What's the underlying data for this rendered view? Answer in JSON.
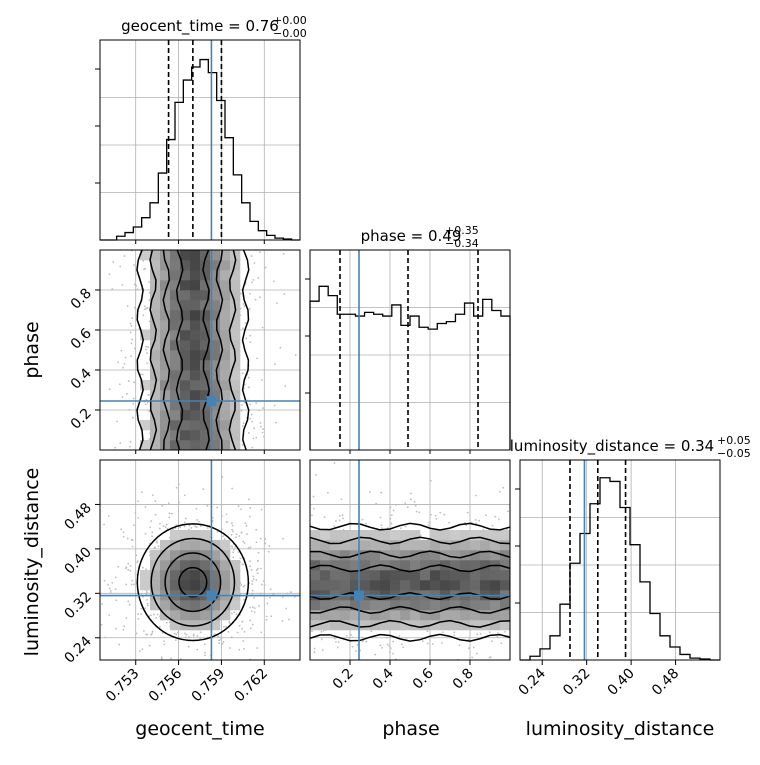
{
  "chart_data": {
    "type": "corner",
    "parameters": [
      {
        "name": "geocent_time",
        "median_label": "0.76",
        "plus": "+0.00",
        "minus": "−0.00",
        "title_prefix": "geocent_time = ",
        "range": [
          0.7505,
          0.7645
        ],
        "ticks": [
          {
            "v": 0.753,
            "label": "0.753"
          },
          {
            "v": 0.756,
            "label": "0.756"
          },
          {
            "v": 0.759,
            "label": "0.759"
          },
          {
            "v": 0.762,
            "label": "0.762"
          }
        ],
        "injected": 0.7583,
        "quantiles": [
          0.7553,
          0.757,
          0.759
        ],
        "histogram": [
          0,
          0,
          0.02,
          0.04,
          0.07,
          0.12,
          0.2,
          0.36,
          0.54,
          0.74,
          0.86,
          0.93,
          0.97,
          0.9,
          0.75,
          0.55,
          0.35,
          0.2,
          0.1,
          0.05,
          0.025,
          0.01,
          0.005,
          0
        ]
      },
      {
        "name": "phase",
        "median_label": "0.49",
        "plus": "+0.35",
        "minus": "−0.34",
        "title_prefix": "phase = ",
        "range": [
          0.0,
          1.0
        ],
        "ticks": [
          {
            "v": 0.2,
            "label": "0.2"
          },
          {
            "v": 0.4,
            "label": "0.4"
          },
          {
            "v": 0.6,
            "label": "0.6"
          },
          {
            "v": 0.8,
            "label": "0.8"
          }
        ],
        "injected": 0.245,
        "quantiles": [
          0.15,
          0.49,
          0.84
        ],
        "histogram": [
          0.8,
          0.88,
          0.83,
          0.73,
          0.73,
          0.72,
          0.74,
          0.73,
          0.72,
          0.78,
          0.67,
          0.72,
          0.66,
          0.65,
          0.68,
          0.69,
          0.73,
          0.79,
          0.72,
          0.81,
          0.75,
          0.72
        ]
      },
      {
        "name": "luminosity_distance",
        "median_label": "0.34",
        "plus": "+0.05",
        "minus": "−0.05",
        "title_prefix": "luminosity_distance = ",
        "range": [
          0.2,
          0.56
        ],
        "ticks": [
          {
            "v": 0.24,
            "label": "0.24"
          },
          {
            "v": 0.32,
            "label": "0.32"
          },
          {
            "v": 0.4,
            "label": "0.40"
          },
          {
            "v": 0.48,
            "label": "0.48"
          }
        ],
        "injected": 0.316,
        "quantiles": [
          0.29,
          0.34,
          0.39
        ],
        "histogram": [
          0,
          0.02,
          0.06,
          0.13,
          0.3,
          0.52,
          0.68,
          0.84,
          0.98,
          0.96,
          0.82,
          0.62,
          0.42,
          0.25,
          0.13,
          0.07,
          0.03,
          0.01,
          0.005,
          0
        ]
      }
    ],
    "injection_color": "#4682b4",
    "grid": true
  }
}
